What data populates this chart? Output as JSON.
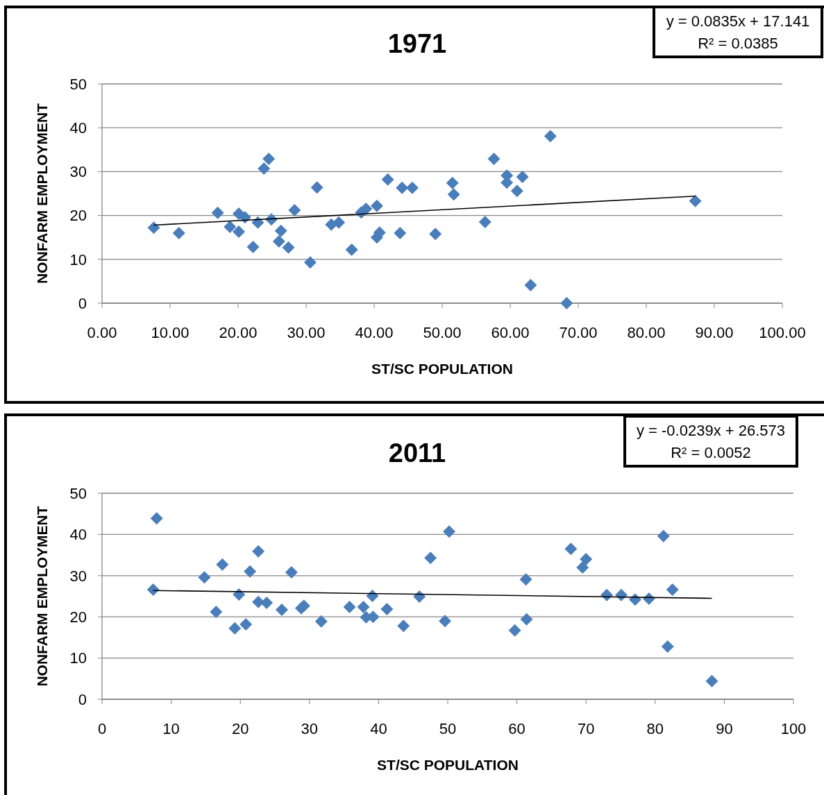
{
  "chart_data": [
    {
      "type": "scatter",
      "title": "1971",
      "xlabel": "ST/SC POPULATION",
      "ylabel": "NONFARM EMPLOYMENT",
      "annotations": [
        "y = 0.0835x + 17.141",
        "R² = 0.0385"
      ],
      "xlim": [
        0,
        100
      ],
      "xticks": [
        {
          "value": 0,
          "label": "0.00"
        },
        {
          "value": 10,
          "label": "10.00"
        },
        {
          "value": 20,
          "label": "20.00"
        },
        {
          "value": 30,
          "label": "30.00"
        },
        {
          "value": 40,
          "label": "40.00"
        },
        {
          "value": 50,
          "label": "50.00"
        },
        {
          "value": 60,
          "label": "60.00"
        },
        {
          "value": 70,
          "label": "70.00"
        },
        {
          "value": 80,
          "label": "80.00"
        },
        {
          "value": 90,
          "label": "90.00"
        },
        {
          "value": 100,
          "label": "100.00"
        }
      ],
      "ylim": [
        0,
        50
      ],
      "yticks": [
        0,
        10,
        20,
        30,
        40,
        50
      ],
      "grid": "y",
      "series": [
        {
          "type": "scatter",
          "color": "#4a7ebb",
          "marker": "diamond",
          "x": [
            7.6,
            11.3,
            17.0,
            18.8,
            20.1,
            20.1,
            21.0,
            22.2,
            22.9,
            23.8,
            24.5,
            24.9,
            26.0,
            26.3,
            27.4,
            28.3,
            30.6,
            31.6,
            33.7,
            34.8,
            36.7,
            38.1,
            38.8,
            40.4,
            40.4,
            40.8,
            42.0,
            43.8,
            44.1,
            45.6,
            49.0,
            51.5,
            51.7,
            56.3,
            57.6,
            59.5,
            59.5,
            61.0,
            61.8,
            63.0,
            65.9,
            68.3,
            87.2
          ],
          "values": [
            17.2,
            16.0,
            20.6,
            17.4,
            16.3,
            20.4,
            19.6,
            12.8,
            18.4,
            30.7,
            32.9,
            19.1,
            14.1,
            16.5,
            12.7,
            21.2,
            9.3,
            26.4,
            17.9,
            18.4,
            12.2,
            20.7,
            21.5,
            15.0,
            22.2,
            16.1,
            28.2,
            16.0,
            26.3,
            26.3,
            15.8,
            27.4,
            24.8,
            18.5,
            32.9,
            29.1,
            27.5,
            25.6,
            28.8,
            4.1,
            38.1,
            0.0,
            23.3
          ]
        },
        {
          "type": "line",
          "color": "#000000",
          "marker": "none",
          "line_style": "solid",
          "x": [
            7.6,
            87.2
          ],
          "values": [
            17.8,
            24.4
          ]
        }
      ]
    },
    {
      "type": "scatter",
      "title": "2011",
      "xlabel": "ST/SC POPULATION",
      "ylabel": "NONFARM EMPLOYMENT",
      "annotations": [
        "y = -0.0239x + 26.573",
        "R² = 0.0052"
      ],
      "xlim": [
        0,
        100
      ],
      "xticks": [
        0,
        10,
        20,
        30,
        40,
        50,
        60,
        70,
        80,
        90,
        100
      ],
      "ylim": [
        0,
        50
      ],
      "yticks": [
        0,
        10,
        20,
        30,
        40,
        50
      ],
      "grid": "y",
      "series": [
        {
          "type": "scatter",
          "color": "#4a7ebb",
          "marker": "diamond",
          "x": [
            7.4,
            7.9,
            14.8,
            16.5,
            17.4,
            19.2,
            19.8,
            20.8,
            21.4,
            22.6,
            22.6,
            23.8,
            26.0,
            27.4,
            28.8,
            29.2,
            31.7,
            35.8,
            37.8,
            38.2,
            39.1,
            39.2,
            41.2,
            43.6,
            45.9,
            47.5,
            49.6,
            50.2,
            59.7,
            61.3,
            61.4,
            67.8,
            69.5,
            70.0,
            73.0,
            75.1,
            77.1,
            79.1,
            81.2,
            81.8,
            82.5,
            88.2
          ],
          "values": [
            26.6,
            43.9,
            29.6,
            21.2,
            32.7,
            17.2,
            25.4,
            18.2,
            31.0,
            35.9,
            23.6,
            23.4,
            21.7,
            30.8,
            22.1,
            22.7,
            18.9,
            22.4,
            22.4,
            19.9,
            25.1,
            20.0,
            21.9,
            17.8,
            24.9,
            34.3,
            19.0,
            40.7,
            16.7,
            29.1,
            19.4,
            36.5,
            32.0,
            34.0,
            25.3,
            25.3,
            24.2,
            24.4,
            39.6,
            12.8,
            26.6,
            4.4
          ]
        },
        {
          "type": "line",
          "color": "#000000",
          "marker": "none",
          "line_style": "solid",
          "x": [
            7.4,
            88.2
          ],
          "values": [
            26.4,
            24.5
          ]
        }
      ]
    }
  ]
}
